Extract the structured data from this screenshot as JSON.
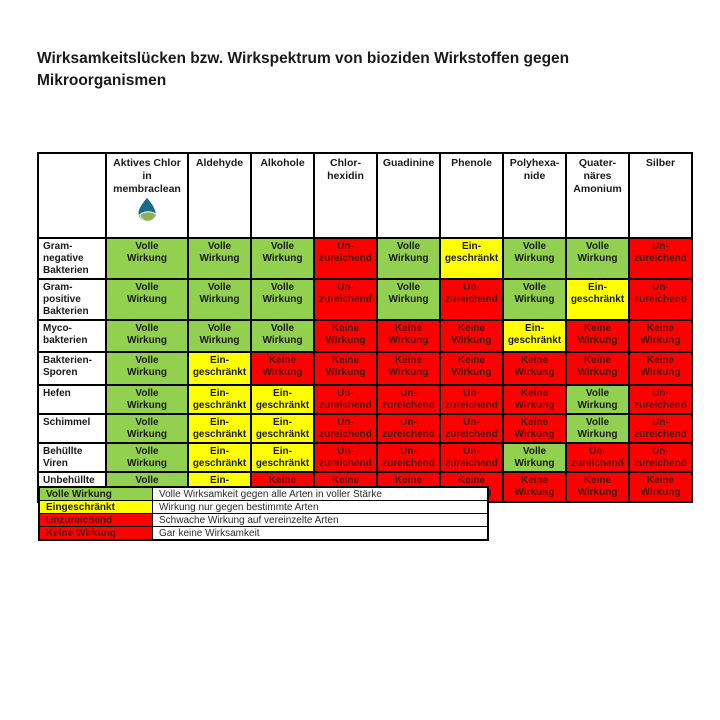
{
  "title": "Wirksamkeitslücken bzw. Wirkspektrum von bioziden Wirkstoffen gegen Mikroorganismen",
  "colors": {
    "green": "#92d050",
    "yellow": "#ffff00",
    "red": "#ff0000",
    "red_text": "#4d1505",
    "text": "#1a1a1a",
    "border": "#000000",
    "logo_drop": "#176d87",
    "logo_leaf": "#90b054"
  },
  "table": {
    "corner_label": "",
    "columns": [
      {
        "id": "aktives-chlor-membraclean",
        "label": "Aktives Chlor\nin\nmembraclean",
        "has_logo": true
      },
      {
        "id": "aldehyde",
        "label": "Aldehyde"
      },
      {
        "id": "alkohole",
        "label": "Alkohole"
      },
      {
        "id": "chlorhexidin",
        "label": "Chlor-\nhexidin"
      },
      {
        "id": "guadinine",
        "label": "Guadinine"
      },
      {
        "id": "phenole",
        "label": "Phenole"
      },
      {
        "id": "polyhexanide",
        "label": "Polyhexa-\nnide"
      },
      {
        "id": "quaternaeres-amonium",
        "label": "Quater-\nnäres\nAmonium"
      },
      {
        "id": "silber",
        "label": "Silber"
      }
    ],
    "cell_types": {
      "V": {
        "text": "Volle\nWirkung",
        "color": "green"
      },
      "E": {
        "text": "Ein-\ngeschränkt",
        "color": "yellow"
      },
      "U": {
        "text": "Un-\nzureichend",
        "color": "red"
      },
      "K": {
        "text": "Keine\nWirkung",
        "color": "red"
      }
    },
    "rows": [
      {
        "label": "Gram-\nnegative\nBakterien",
        "cells": [
          "V",
          "V",
          "V",
          "U",
          "V",
          "E",
          "V",
          "V",
          "U"
        ]
      },
      {
        "label": "Gram-\npositive\nBakterien",
        "cells": [
          "V",
          "V",
          "V",
          "U",
          "V",
          "U",
          "V",
          "E",
          "U"
        ]
      },
      {
        "label": "Myco-\nbakterien",
        "cells": [
          "V",
          "V",
          "V",
          "K",
          "K",
          "K",
          "E",
          "K",
          "K"
        ]
      },
      {
        "label": "Bakterien-\nSporen",
        "cells": [
          "V",
          "E",
          "K",
          "K",
          "K",
          "K",
          "K",
          "K",
          "K"
        ]
      },
      {
        "label": "Hefen",
        "cells": [
          "V",
          "E",
          "E",
          "U",
          "U",
          "U",
          "K",
          "V",
          "U"
        ]
      },
      {
        "label": "Schimmel",
        "cells": [
          "V",
          "E",
          "E",
          "U",
          "U",
          "U",
          "K",
          "V",
          "U"
        ]
      },
      {
        "label": "Behüllte\nViren",
        "cells": [
          "V",
          "E",
          "E",
          "U",
          "U",
          "U",
          "V",
          "U",
          "U"
        ]
      },
      {
        "label": "Unbehüllte\nViren",
        "cells": [
          "V",
          "E",
          "K",
          "K",
          "K",
          "K",
          "K",
          "K",
          "K"
        ]
      }
    ]
  },
  "legend": {
    "entries": [
      {
        "label": "Volle Wirkung",
        "color": "green",
        "description": "Volle Wirksamkeit gegen alle Arten in voller Stärke"
      },
      {
        "label": "Eingeschränkt",
        "color": "yellow",
        "description": "Wirkung nur gegen bestimmte Arten"
      },
      {
        "label": "Unzureichend",
        "color": "red",
        "description": "Schwache Wirkung auf vereinzelte Arten"
      },
      {
        "label": "Keine Wirkung",
        "color": "red",
        "description": "Gar keine Wirksamkeit"
      }
    ]
  },
  "logo": {
    "name": "membraclean-logo"
  }
}
